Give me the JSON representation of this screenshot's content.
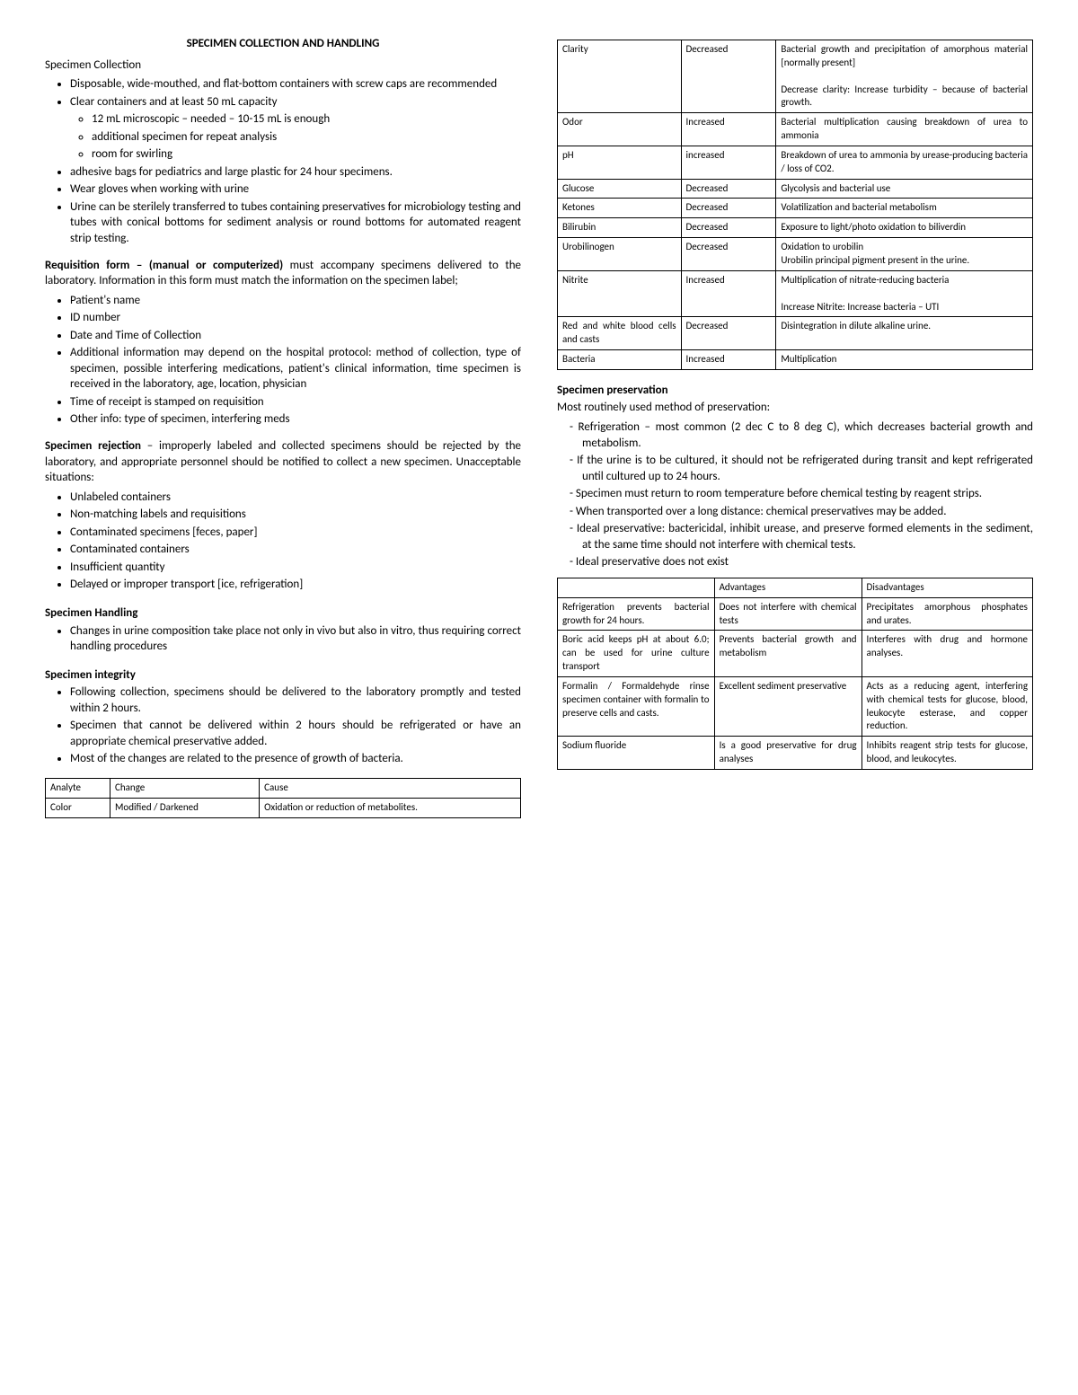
{
  "left": {
    "title": "SPECIMEN COLLECTION AND HANDLING",
    "collection_head": "Specimen Collection",
    "collection_bullets": [
      "Disposable, wide-mouthed, and flat-bottom containers with screw caps are recommended",
      "Clear containers and at least 50 mL capacity"
    ],
    "collection_sub": [
      "12 mL microscopic – needed – 10-15 mL is enough",
      "additional specimen for repeat analysis",
      "room for swirling"
    ],
    "collection_bullets2": [
      "adhesive bags for pediatrics and large plastic for 24 hour specimens.",
      "Wear gloves when working with urine",
      "Urine can be sterilely transferred to tubes containing preservatives for microbiology testing and tubes with conical bottoms for sediment analysis or round bottoms for automated reagent strip testing."
    ],
    "req_bold": "Requisition form – (manual or computerized)",
    "req_text": " must accompany specimens delivered to the laboratory. Information in this form must match the information on the specimen label;",
    "req_bullets": [
      "Patient's name",
      "ID number",
      "Date and Time of Collection",
      "Additional information may depend on the hospital protocol: method of collection, type of specimen, possible interfering medications, patient's clinical information, time specimen is received in the laboratory, age, location, physician",
      "Time of receipt is stamped on requisition",
      "Other info: type of specimen, interfering meds"
    ],
    "rej_bold": "Specimen rejection",
    "rej_text": " – improperly labeled and collected specimens should be rejected by the laboratory, and appropriate personnel should be notified to collect a new specimen. Unacceptable situations:",
    "rej_bullets": [
      "Unlabeled containers",
      "Non-matching labels and requisitions",
      "Contaminated specimens [feces, paper]",
      "Contaminated containers",
      "Insufficient quantity",
      "Delayed or improper transport [ice, refrigeration]"
    ],
    "handling_head": "Specimen Handling",
    "handling_bullets": [
      "Changes in urine composition take place not only in vivo but also in vitro, thus requiring correct handling procedures"
    ],
    "integrity_head": "Specimen integrity",
    "integrity_bullets": [
      "Following collection, specimens should be delivered to the laboratory promptly and tested within 2 hours.",
      "Specimen that cannot be delivered within 2 hours should be refrigerated or have an appropriate chemical preservative added.",
      "Most of the changes are related to the presence of growth of bacteria."
    ],
    "analyte_table": {
      "headers": [
        "Analyte",
        "Change",
        "Cause"
      ],
      "rows": [
        [
          "Color",
          "Modified / Darkened",
          "Oxidation or reduction of metabolites."
        ]
      ]
    }
  },
  "right": {
    "analyte_rows": [
      [
        "Clarity",
        "Decreased",
        "Bacterial growth and precipitation of amorphous material [normally present]\n\nDecrease clarity: Increase turbidity – because of bacterial growth."
      ],
      [
        "Odor",
        "Increased",
        "Bacterial multiplication causing breakdown of urea to ammonia"
      ],
      [
        "pH",
        "increased",
        "Breakdown of urea to ammonia by urease-producing bacteria / loss of CO2."
      ],
      [
        "Glucose",
        "Decreased",
        "Glycolysis and bacterial use"
      ],
      [
        "Ketones",
        "Decreased",
        "Volatilization and bacterial metabolism"
      ],
      [
        "Bilirubin",
        "Decreased",
        "Exposure to light/photo oxidation to biliverdin"
      ],
      [
        "Urobilinogen",
        "Decreased",
        "Oxidation to urobilin\nUrobilin principal pigment present in the urine."
      ],
      [
        "Nitrite",
        "Increased",
        "Multiplication of nitrate-reducing bacteria\n\nIncrease Nitrite: Increase bacteria – UTI"
      ],
      [
        "Red and white blood cells and casts",
        "Decreased",
        "Disintegration in dilute alkaline urine."
      ],
      [
        "Bacteria",
        "Increased",
        "Multiplication"
      ]
    ],
    "pres_head": "Specimen preservation",
    "pres_sub": "Most routinely used method of preservation:",
    "pres_bullets": [
      "Refrigeration – most common (2 dec C to 8 deg C), which decreases bacterial growth and metabolism.",
      "If the urine is to be cultured, it should not be refrigerated during transit and kept refrigerated until cultured up to 24 hours.",
      "Specimen must return to room temperature before chemical testing by reagent strips.",
      "When transported over a long distance: chemical preservatives may be added.",
      "Ideal preservative: bactericidal, inhibit urease, and preserve formed elements in the sediment, at the same time should not interfere with chemical tests.",
      "Ideal preservative does not exist"
    ],
    "pres_table": {
      "headers": [
        "",
        "Advantages",
        "Disadvantages"
      ],
      "rows": [
        [
          "Refrigeration prevents bacterial growth for 24 hours.",
          "Does not interfere with chemical tests",
          "Precipitates amorphous phosphates and urates."
        ],
        [
          "Boric acid keeps pH at about 6.0; can be used for urine culture transport",
          "Prevents bacterial growth and metabolism",
          "Interferes with drug and hormone analyses."
        ],
        [
          "Formalin / Formaldehyde rinse specimen container with formalin to preserve cells and casts.",
          "Excellent sediment preservative",
          "Acts as a reducing agent, interfering with chemical tests for glucose, blood, leukocyte esterase, and copper reduction."
        ],
        [
          "Sodium fluoride",
          "Is a good preservative for drug analyses",
          "Inhibits reagent strip tests for glucose, blood, and leukocytes."
        ]
      ]
    }
  }
}
